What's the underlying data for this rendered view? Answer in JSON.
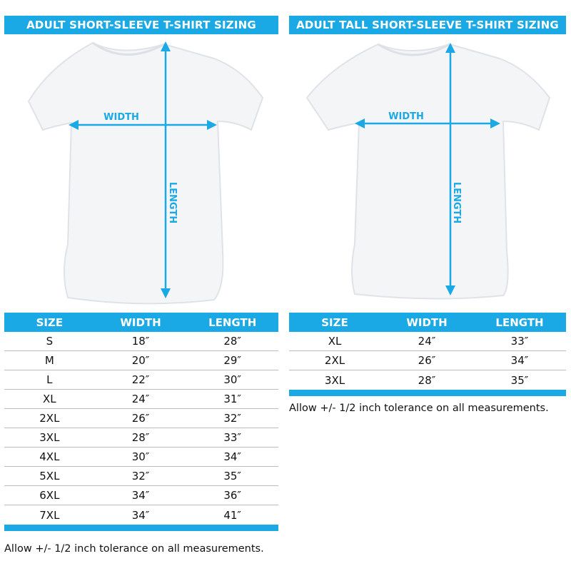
{
  "left": {
    "title": "ADULT SHORT-SLEEVE T-SHIRT SIZING",
    "width_label": "WIDTH",
    "length_label": "LENGTH",
    "columns": [
      "SIZE",
      "WIDTH",
      "LENGTH"
    ],
    "rows": [
      [
        "S",
        "18″",
        "28″"
      ],
      [
        "M",
        "20″",
        "29″"
      ],
      [
        "L",
        "22″",
        "30″"
      ],
      [
        "XL",
        "24″",
        "31″"
      ],
      [
        "2XL",
        "26″",
        "32″"
      ],
      [
        "3XL",
        "28″",
        "33″"
      ],
      [
        "4XL",
        "30″",
        "34″"
      ],
      [
        "5XL",
        "32″",
        "35″"
      ],
      [
        "6XL",
        "34″",
        "36″"
      ],
      [
        "7XL",
        "34″",
        "41″"
      ]
    ],
    "note": "Allow +/- 1/2 inch tolerance on all measurements."
  },
  "right": {
    "title": "ADULT TALL SHORT-SLEEVE T-SHIRT SIZING",
    "width_label": "WIDTH",
    "length_label": "LENGTH",
    "columns": [
      "SIZE",
      "WIDTH",
      "LENGTH"
    ],
    "rows": [
      [
        "XL",
        "24″",
        "33″"
      ],
      [
        "2XL",
        "26″",
        "34″"
      ],
      [
        "3XL",
        "28″",
        "35″"
      ]
    ],
    "note": "Allow +/- 1/2 inch tolerance on all measurements."
  },
  "colors": {
    "accent": "#1ba9e6"
  }
}
